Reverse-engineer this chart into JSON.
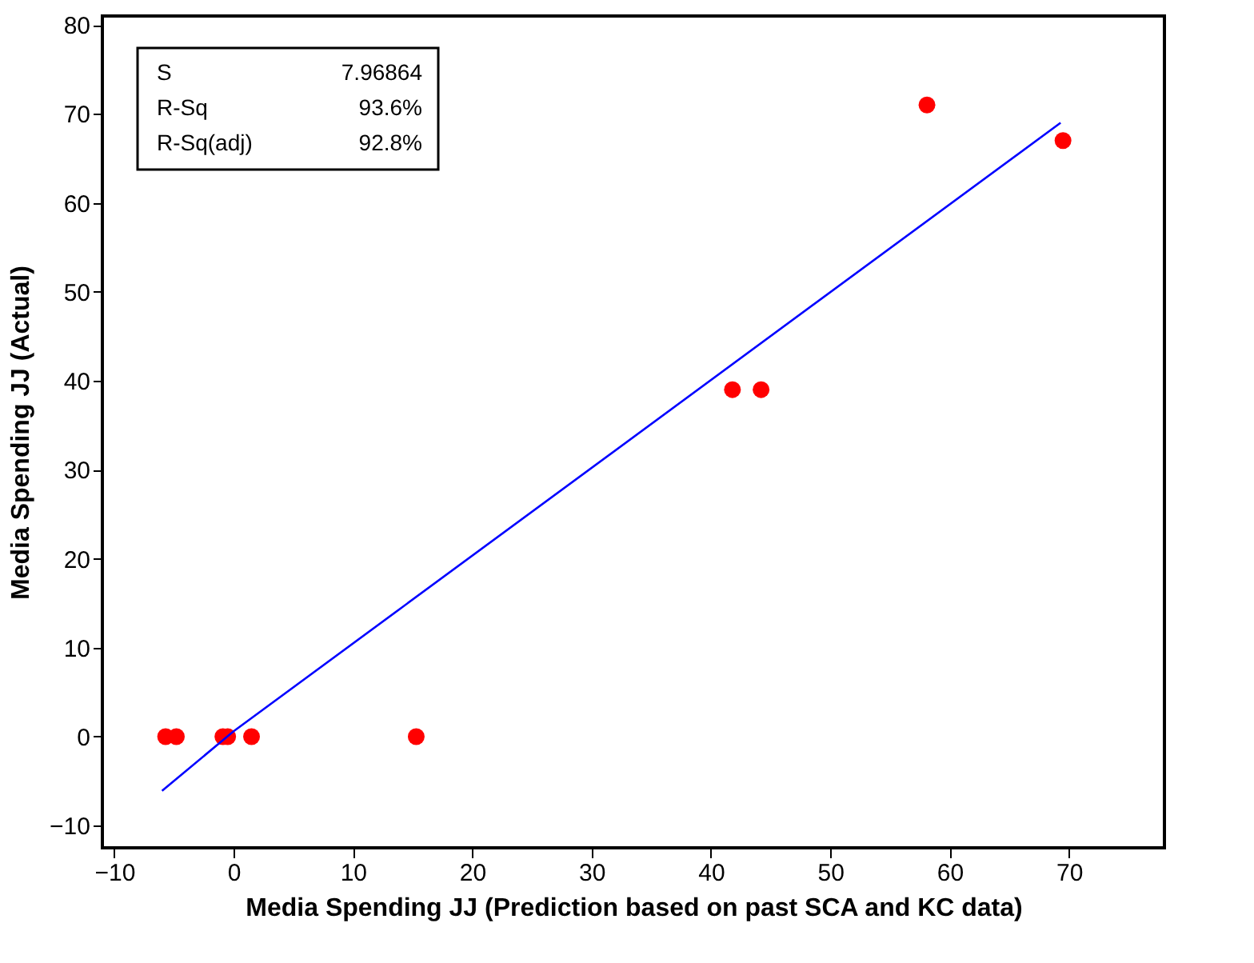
{
  "chart_data": {
    "type": "scatter",
    "xlabel": "Media Spending JJ (Prediction based on past SCA and KC data)",
    "ylabel": "Media Spending JJ (Actual)",
    "xlim": [
      -11,
      78
    ],
    "ylim": [
      -12.5,
      81
    ],
    "xticks": [
      -10,
      0,
      10,
      20,
      30,
      40,
      50,
      60,
      70
    ],
    "yticks": [
      -10,
      0,
      10,
      20,
      30,
      40,
      50,
      60,
      70,
      80
    ],
    "grid": false,
    "annotations": [
      "S",
      "7.96864",
      "R-Sq",
      "93.6%",
      "R-Sq(adj)",
      "92.8%"
    ],
    "series": [
      {
        "color": "#ff0000",
        "marker": "circle",
        "x": [
          -5.7,
          -4.8,
          -0.9,
          -0.5,
          1.5,
          15.3,
          41.8,
          44.2,
          58.1,
          69.5
        ],
        "values": [
          0,
          0,
          0,
          0,
          0,
          0,
          39,
          39,
          71,
          67
        ]
      },
      {
        "type": "line",
        "color": "#0000ff",
        "line_style": "solid",
        "x": [
          -6,
          0,
          69.3
        ],
        "values": [
          -6.1,
          0.6,
          69
        ]
      }
    ]
  }
}
